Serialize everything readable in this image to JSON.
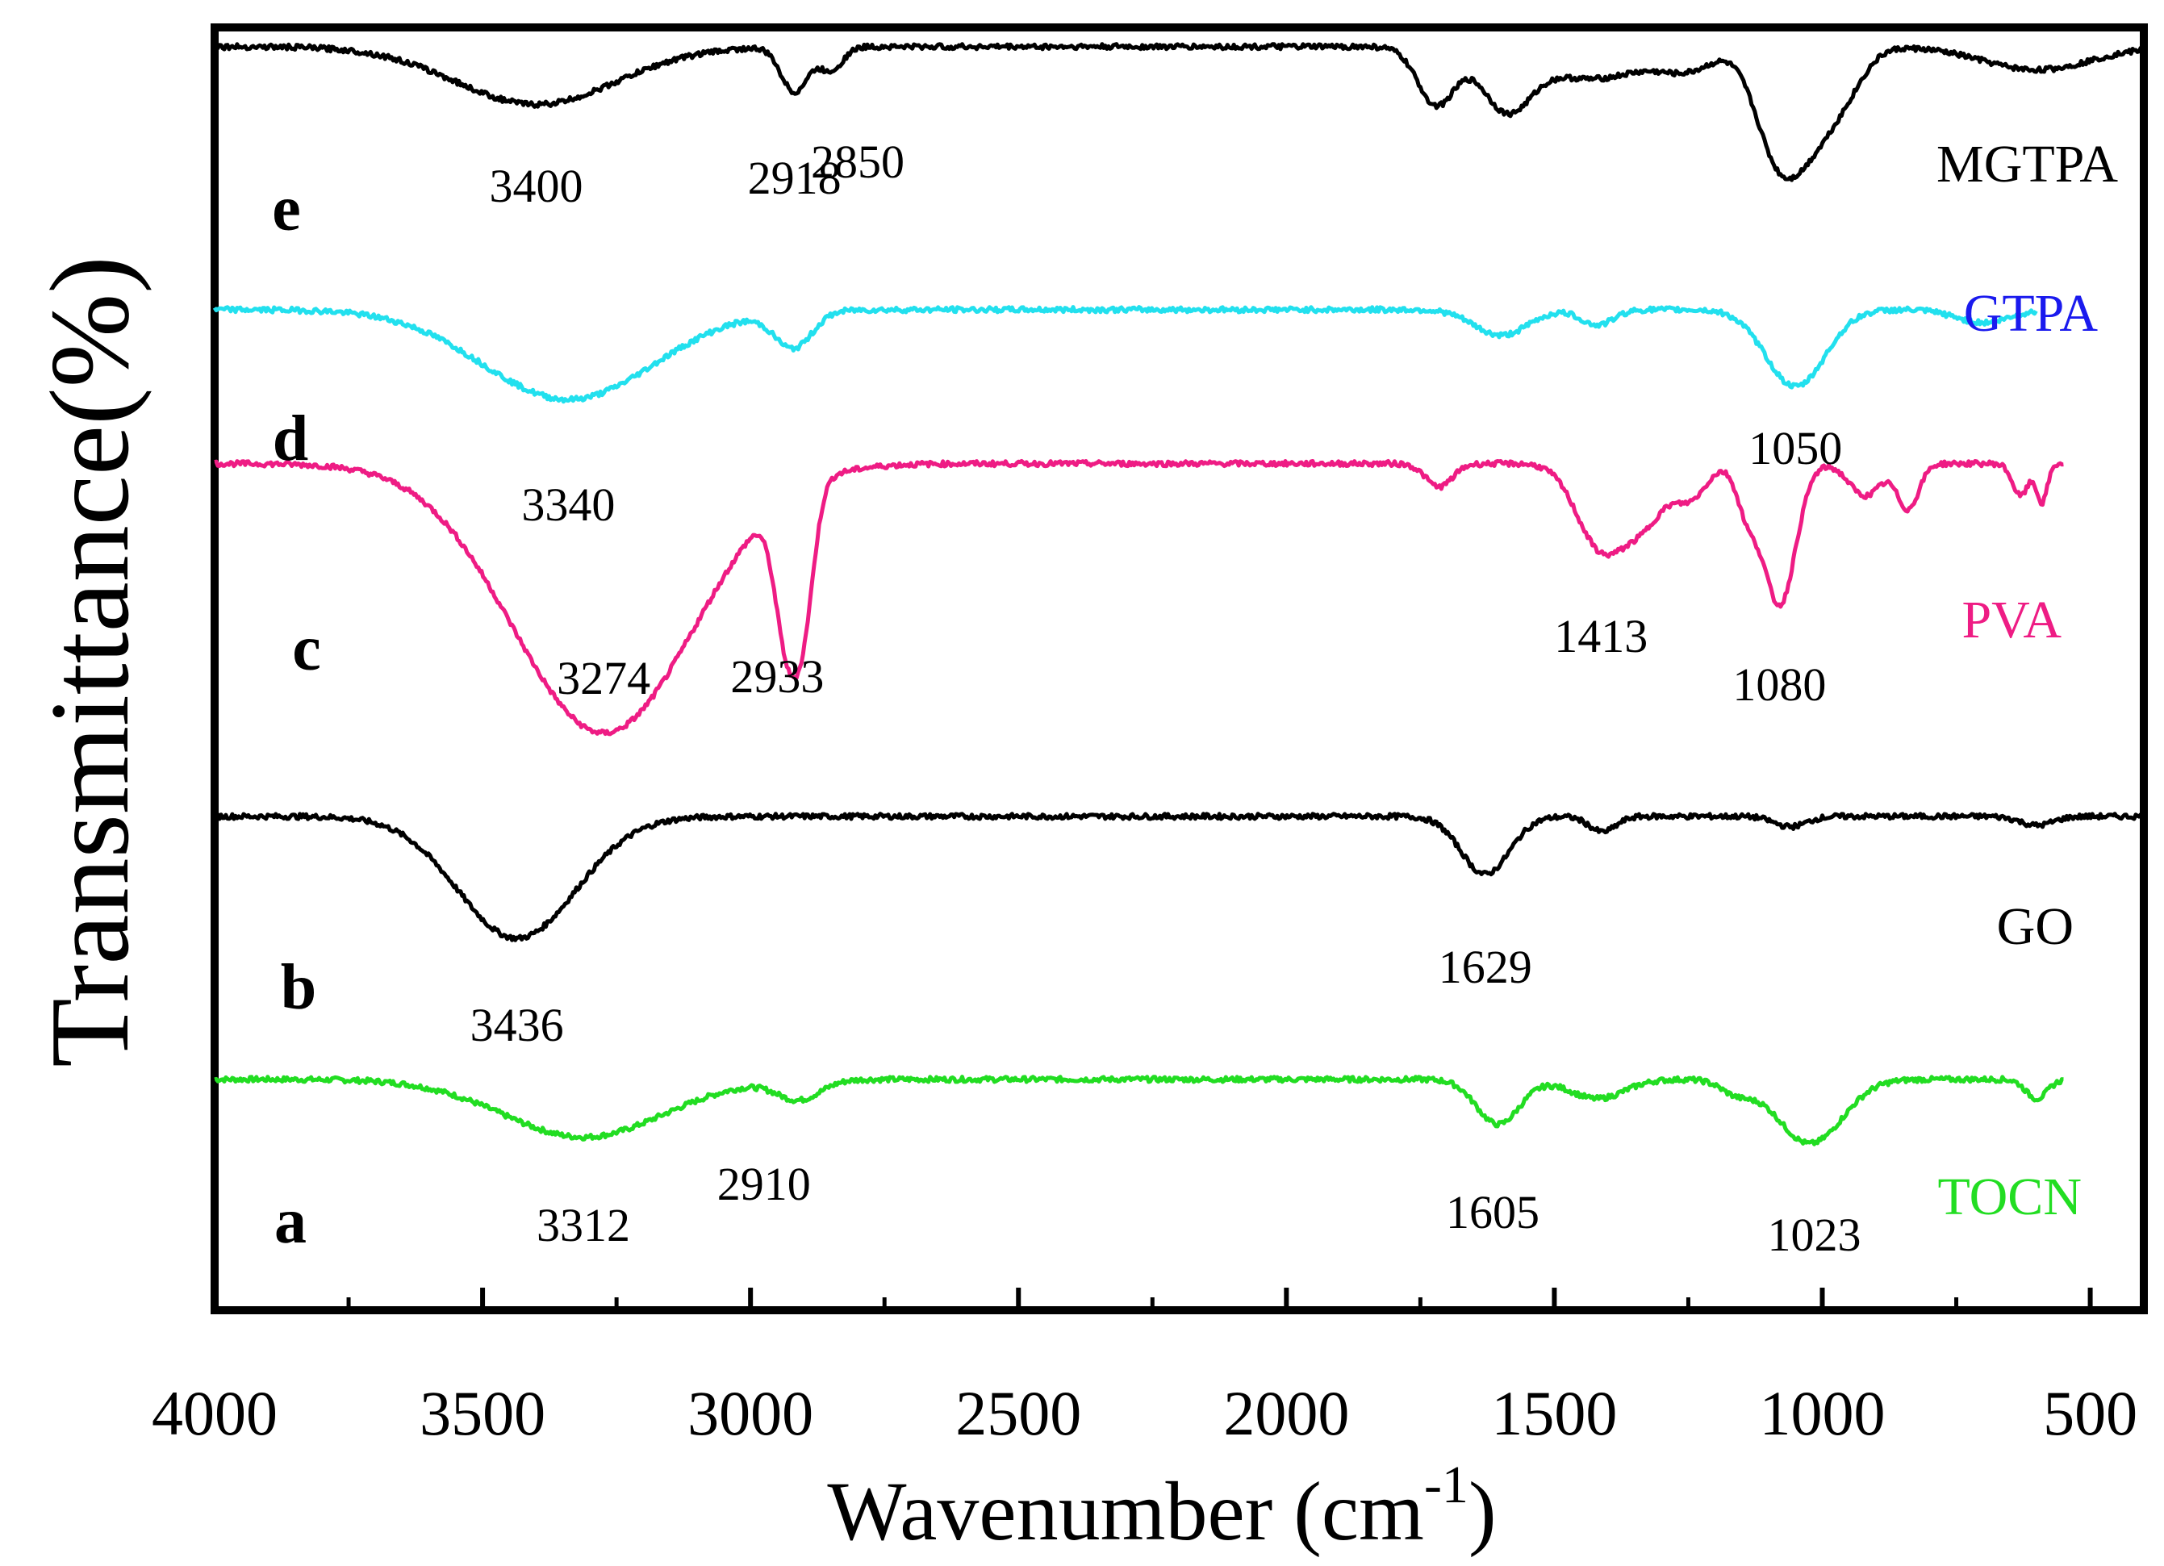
{
  "chart_data": {
    "type": "line",
    "xlabel": "Wavenumber (cm",
    "xlabel_sup": "-1",
    "xlabel_close": ")",
    "ylabel": "Transmittance(%)",
    "xlim": [
      4000,
      400
    ],
    "x_reversed": true,
    "xticks": [
      "4000",
      "3500",
      "3000",
      "2500",
      "2000",
      "1500",
      "1000",
      "500"
    ],
    "grid": false,
    "series": [
      {
        "id": "a",
        "letter": "a",
        "name": "TOCN",
        "color": "#22dd22",
        "x_range": [
          4000,
          550
        ],
        "baseline": 0.18,
        "dips": [
          {
            "x": 3312,
            "depth": 0.045,
            "width": 150
          },
          {
            "x": 2910,
            "depth": 0.015,
            "width": 40
          },
          {
            "x": 1605,
            "depth": 0.035,
            "width": 40
          },
          {
            "x": 1420,
            "depth": 0.015,
            "width": 50
          },
          {
            "x": 1160,
            "depth": 0.01,
            "width": 30
          },
          {
            "x": 1023,
            "depth": 0.05,
            "width": 60
          },
          {
            "x": 600,
            "depth": 0.015,
            "width": 20
          }
        ],
        "peaks": [
          {
            "value": "3312",
            "x": 3312
          },
          {
            "value": "2910",
            "x": 2910
          },
          {
            "value": "1605",
            "x": 1605
          },
          {
            "value": "1023",
            "x": 1023
          }
        ]
      },
      {
        "id": "b",
        "letter": "b",
        "name": "GO",
        "color": "#000000",
        "x_range": [
          4000,
          400
        ],
        "baseline": 0.385,
        "dips": [
          {
            "x": 3436,
            "depth": 0.095,
            "width": 110
          },
          {
            "x": 1629,
            "depth": 0.045,
            "width": 45
          },
          {
            "x": 1410,
            "depth": 0.012,
            "width": 25
          },
          {
            "x": 1060,
            "depth": 0.008,
            "width": 30
          },
          {
            "x": 600,
            "depth": 0.007,
            "width": 30
          }
        ],
        "peaks": [
          {
            "value": "3436",
            "x": 3436
          },
          {
            "value": "1629",
            "x": 1629
          }
        ]
      },
      {
        "id": "c",
        "letter": "c",
        "name": "PVA",
        "color": "#ee1c84",
        "x_range": [
          4000,
          550
        ],
        "baseline": 0.66,
        "dips": [
          {
            "x": 3274,
            "depth": 0.21,
            "width": 170
          },
          {
            "x": 2933,
            "depth": 0.105,
            "width": 22
          },
          {
            "x": 2900,
            "depth": 0.09,
            "width": 20
          },
          {
            "x": 1715,
            "depth": 0.018,
            "width": 25
          },
          {
            "x": 1413,
            "depth": 0.065,
            "width": 45
          },
          {
            "x": 1330,
            "depth": 0.04,
            "width": 40
          },
          {
            "x": 1245,
            "depth": 0.025,
            "width": 30
          },
          {
            "x": 1140,
            "depth": 0.035,
            "width": 20
          },
          {
            "x": 1080,
            "depth": 0.11,
            "width": 30
          },
          {
            "x": 920,
            "depth": 0.025,
            "width": 30
          },
          {
            "x": 840,
            "depth": 0.035,
            "width": 20
          },
          {
            "x": 630,
            "depth": 0.025,
            "width": 15
          },
          {
            "x": 590,
            "depth": 0.03,
            "width": 10
          }
        ],
        "peaks": [
          {
            "value": "3274",
            "x": 3274
          },
          {
            "value": "2933",
            "x": 2933
          },
          {
            "value": "1413",
            "x": 1413
          },
          {
            "value": "1080",
            "x": 1080
          }
        ]
      },
      {
        "id": "d",
        "letter": "d",
        "name": "GTPA",
        "color": "#22e0ee",
        "name_color": "#1a1aee",
        "x_range": [
          4000,
          600
        ],
        "baseline": 0.78,
        "dips": [
          {
            "x": 3340,
            "depth": 0.07,
            "width": 160
          },
          {
            "x": 2920,
            "depth": 0.028,
            "width": 35
          },
          {
            "x": 1600,
            "depth": 0.02,
            "width": 50
          },
          {
            "x": 1420,
            "depth": 0.012,
            "width": 30
          },
          {
            "x": 1050,
            "depth": 0.06,
            "width": 55
          },
          {
            "x": 700,
            "depth": 0.01,
            "width": 50
          }
        ],
        "peaks": [
          {
            "value": "3340",
            "x": 3340
          },
          {
            "value": "1050",
            "x": 1050
          }
        ]
      },
      {
        "id": "e",
        "letter": "e",
        "name": "MGTPA",
        "color": "#000000",
        "x_range": [
          4000,
          400
        ],
        "baseline": 0.985,
        "dips": [
          {
            "x": 3400,
            "depth": 0.045,
            "width": 150
          },
          {
            "x": 2918,
            "depth": 0.035,
            "width": 25
          },
          {
            "x": 2850,
            "depth": 0.018,
            "width": 22
          },
          {
            "x": 1720,
            "depth": 0.045,
            "width": 35
          },
          {
            "x": 1590,
            "depth": 0.045,
            "width": 45
          },
          {
            "x": 1430,
            "depth": 0.025,
            "width": 100
          },
          {
            "x": 1250,
            "depth": 0.015,
            "width": 50
          },
          {
            "x": 1090,
            "depth": 0.065,
            "width": 40
          },
          {
            "x": 1030,
            "depth": 0.065,
            "width": 45
          },
          {
            "x": 960,
            "depth": 0.03,
            "width": 40
          },
          {
            "x": 600,
            "depth": 0.018,
            "width": 100
          }
        ],
        "peaks": [
          {
            "value": "3400",
            "x": 3400
          },
          {
            "value": "2918",
            "x": 2918
          },
          {
            "value": "2850",
            "x": 2850
          }
        ]
      }
    ]
  }
}
